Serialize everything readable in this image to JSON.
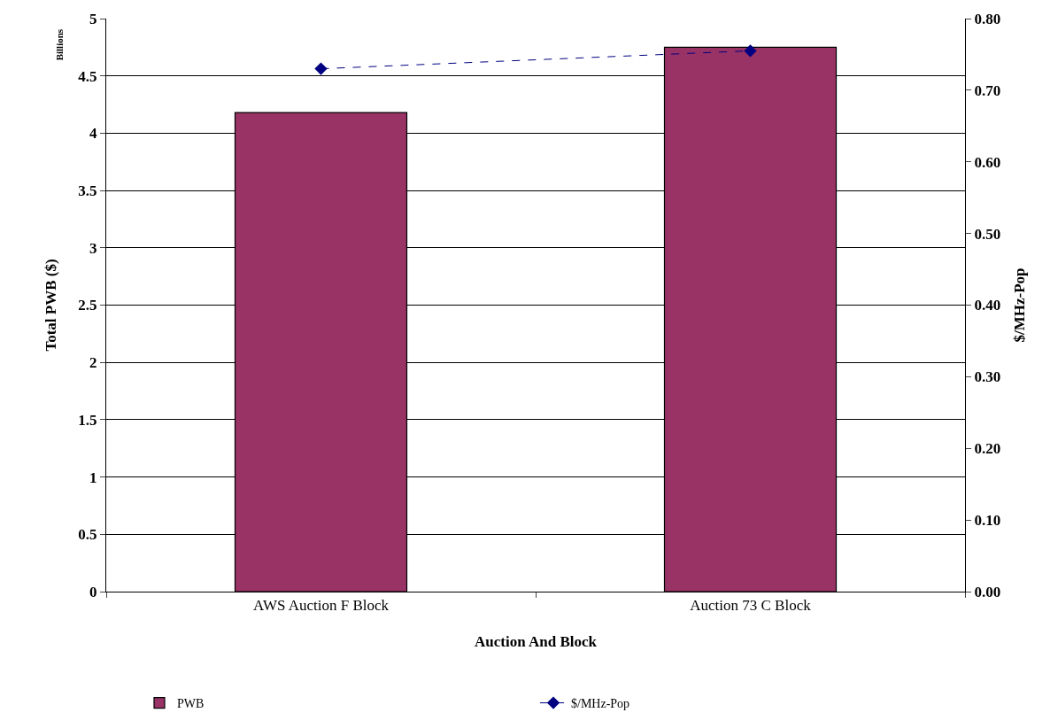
{
  "chart_data": {
    "type": "bar",
    "xlabel": "Auction And Block",
    "ylabel": "Total PWB ($)",
    "y2label": "$/MHz-Pop",
    "annotations": [
      "Billions"
    ],
    "categories": [
      "AWS Auction F Block",
      "Auction 73 C Block"
    ],
    "series": [
      {
        "name": "PWB",
        "color": "#993366",
        "values": [
          4.18,
          4.75
        ]
      },
      {
        "name": "$/MHz-Pop",
        "type": "line",
        "axis": "y2",
        "color": "#000080",
        "values": [
          0.73,
          0.755
        ],
        "marker": "diamond",
        "line_style": "dashed"
      }
    ],
    "ylim": [
      0,
      5
    ],
    "yticks": [
      0,
      0.5,
      1,
      1.5,
      2,
      2.5,
      3,
      3.5,
      4,
      4.5,
      5
    ],
    "y2lim": [
      0,
      0.8
    ],
    "y2ticks": [
      {
        "value": 0,
        "label": "0.00"
      },
      {
        "value": 0.1,
        "label": "0.10"
      },
      {
        "value": 0.2,
        "label": "0.20"
      },
      {
        "value": 0.3,
        "label": "0.30"
      },
      {
        "value": 0.4,
        "label": "0.40"
      },
      {
        "value": 0.5,
        "label": "0.50"
      },
      {
        "value": 0.6,
        "label": "0.60"
      },
      {
        "value": 0.7,
        "label": "0.70"
      },
      {
        "value": 0.8,
        "label": "0.80"
      }
    ],
    "grid": "y",
    "legend": "bottom"
  }
}
